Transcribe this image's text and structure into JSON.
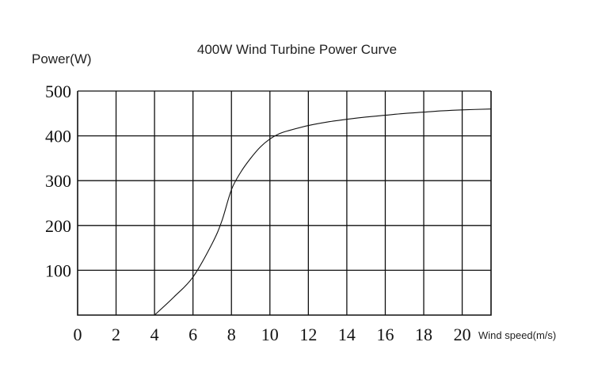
{
  "chart_data": {
    "type": "line",
    "title": "400W Wind Turbine Power Curve",
    "ylabel": "Power(W)",
    "xlabel": "Wind speed(m/s)",
    "xlim": [
      0,
      21.5
    ],
    "ylim": [
      0,
      500
    ],
    "x_ticks": [
      "0",
      "2",
      "4",
      "6",
      "8",
      "10",
      "12",
      "14",
      "16",
      "18",
      "20"
    ],
    "y_ticks": [
      "100",
      "200",
      "300",
      "400",
      "500"
    ],
    "grid": true,
    "series": [
      {
        "x": [
          4,
          5,
          6,
          7,
          7.5,
          8,
          8.5,
          9,
          9.5,
          10,
          10.5,
          11,
          12,
          13,
          14,
          15,
          16,
          17,
          18,
          19,
          20,
          21.5
        ],
        "y": [
          0,
          40,
          85,
          160,
          210,
          280,
          320,
          350,
          375,
          393,
          405,
          412,
          423,
          431,
          437,
          442,
          446,
          450,
          453,
          456,
          458,
          460
        ]
      }
    ]
  }
}
